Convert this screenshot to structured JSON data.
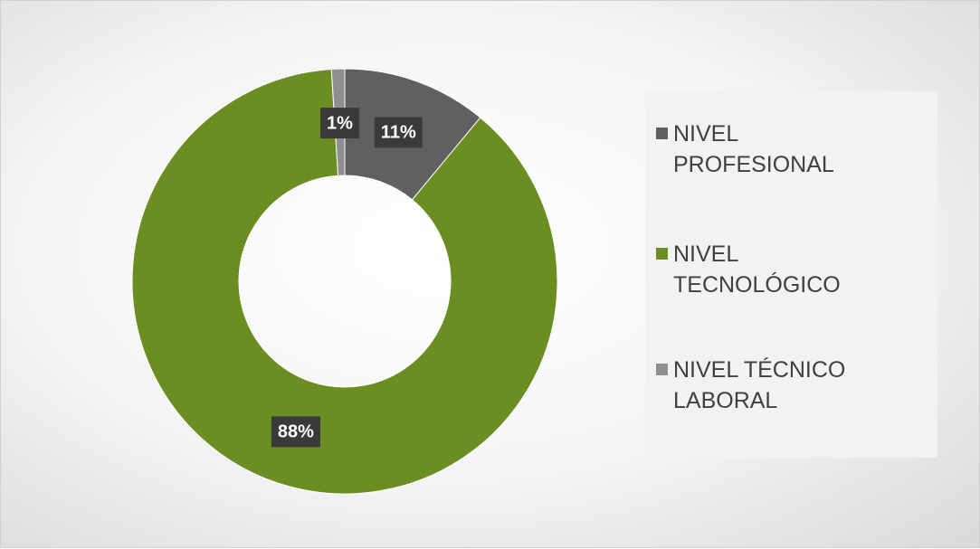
{
  "chart_data": {
    "type": "donut",
    "categories": [
      "NIVEL PROFESIONAL",
      "NIVEL TECNOLÓGICO",
      "NIVEL TÉCNICO LABORAL"
    ],
    "values": [
      11,
      88,
      1
    ],
    "value_labels": [
      "11%",
      "88%",
      "1%"
    ],
    "colors": [
      "#606060",
      "#6b8e23",
      "#8f8f8f"
    ],
    "legend": "right"
  }
}
